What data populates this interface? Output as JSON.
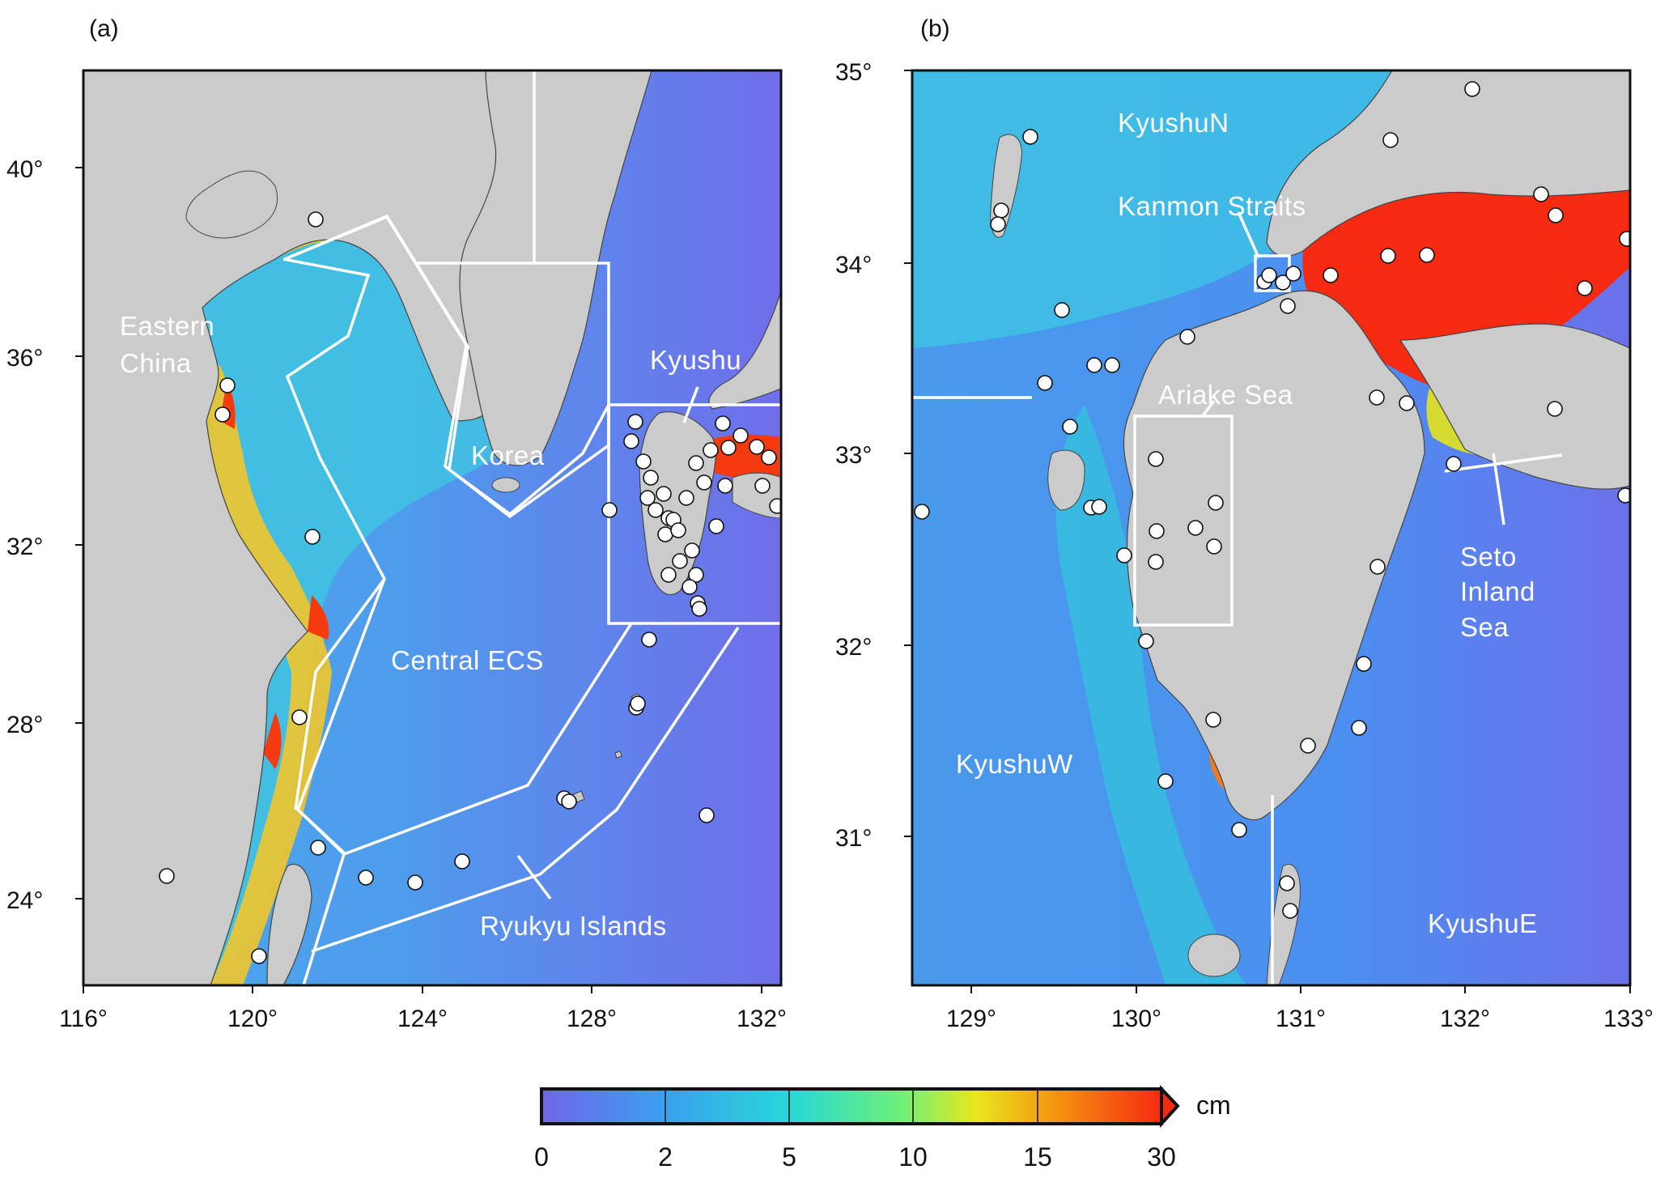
{
  "panels": {
    "a": {
      "tag": "(a)",
      "y_ticks": [
        "40°",
        "36°",
        "32°",
        "28°",
        "24°"
      ],
      "x_ticks": [
        "116°",
        "120°",
        "124°",
        "128°",
        "132°"
      ],
      "regions": {
        "eastern_china_1": "Eastern",
        "eastern_china_2": "China",
        "korea": "Korea",
        "kyushu": "Kyushu",
        "central_ecs": "Central ECS",
        "ryukyu": "Ryukyu Islands"
      }
    },
    "b": {
      "tag": "(b)",
      "y_ticks": [
        "35°",
        "34°",
        "33°",
        "32°",
        "31°"
      ],
      "x_ticks": [
        "129°",
        "130°",
        "131°",
        "132°",
        "133°"
      ],
      "regions": {
        "kyushu_n": "KyushuN",
        "kanmon": "Kanmon Straits",
        "ariake": "Ariake Sea",
        "seto_1": "Seto",
        "seto_2": "Inland",
        "seto_3": "Sea",
        "kyushu_w": "KyushuW",
        "kyushu_e": "KyushuE"
      }
    }
  },
  "colorbar": {
    "unit": "cm",
    "ticks": [
      "0",
      "2",
      "5",
      "10",
      "15",
      "30"
    ],
    "colors": [
      "#7066e8",
      "#3aa0f0",
      "#27d8d8",
      "#6ef07a",
      "#e8e81c",
      "#f59a10",
      "#f52a10"
    ]
  }
}
